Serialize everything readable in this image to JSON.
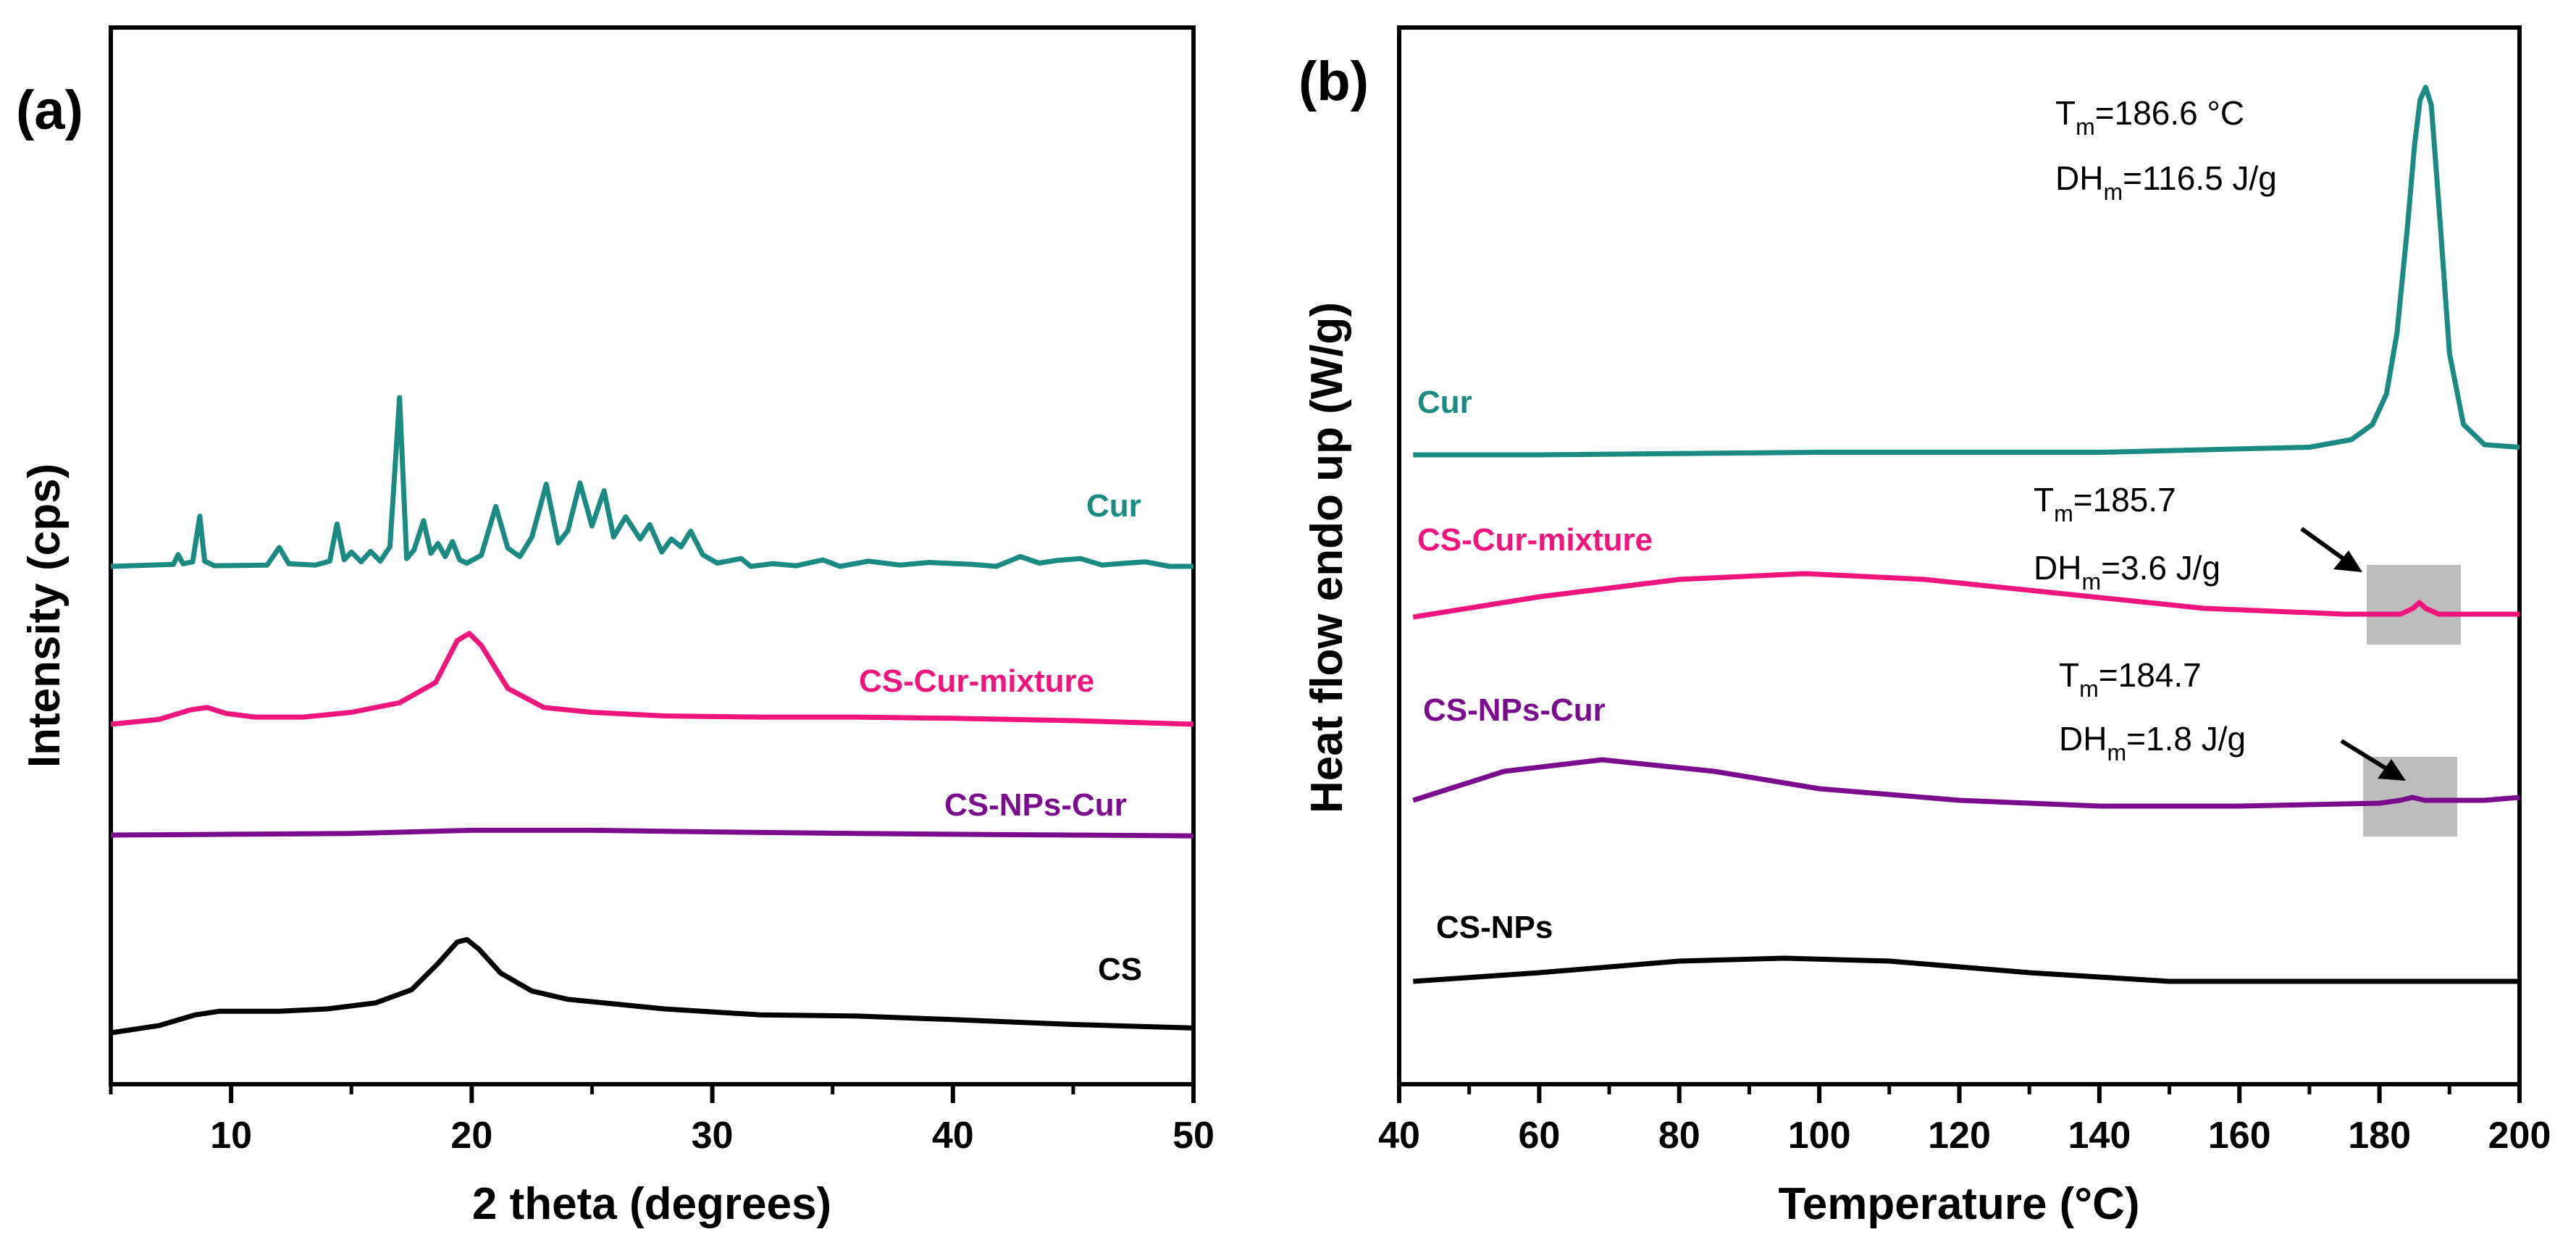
{
  "chart_data": [
    {
      "panel": "(a)",
      "type": "line",
      "xlabel": "2 theta (degrees)",
      "ylabel": "Intensity (cps)",
      "xlim": [
        5,
        50
      ],
      "xticks": [
        10,
        20,
        30,
        40,
        50
      ],
      "yticks": [],
      "series": [
        {
          "name": "Cur",
          "color": "#1a8a82",
          "x": [
            5,
            7.6,
            7.8,
            8.0,
            8.4,
            8.7,
            8.9,
            9.3,
            11.5,
            12.0,
            12.4,
            13.5,
            14.1,
            14.4,
            14.7,
            15.0,
            15.4,
            15.8,
            16.2,
            16.6,
            17.0,
            17.3,
            17.6,
            18.0,
            18.3,
            18.6,
            18.9,
            19.2,
            19.5,
            19.8,
            20.4,
            21.0,
            21.5,
            22.0,
            22.5,
            23.1,
            23.6,
            24.0,
            24.5,
            25.0,
            25.5,
            25.9,
            26.4,
            27.0,
            27.4,
            27.9,
            28.3,
            28.7,
            29.1,
            29.6,
            30.2,
            31.2,
            31.6,
            32.5,
            33.5,
            34.6,
            35.3,
            36.5,
            37.8,
            39.0,
            40.8,
            41.8,
            42.8,
            43.6,
            44.3,
            45.3,
            46.2,
            47.2,
            48.0,
            49.0,
            50
          ],
          "values": [
            0.0,
            0.03,
            0.18,
            0.04,
            0.07,
            0.77,
            0.08,
            0.01,
            0.02,
            0.29,
            0.04,
            0.02,
            0.08,
            0.65,
            0.1,
            0.22,
            0.07,
            0.23,
            0.08,
            0.3,
            2.59,
            0.12,
            0.25,
            0.7,
            0.2,
            0.35,
            0.15,
            0.38,
            0.1,
            0.05,
            0.17,
            0.92,
            0.28,
            0.15,
            0.45,
            1.26,
            0.36,
            0.55,
            1.28,
            0.62,
            1.16,
            0.45,
            0.76,
            0.42,
            0.64,
            0.22,
            0.42,
            0.3,
            0.54,
            0.18,
            0.05,
            0.12,
            0.0,
            0.04,
            0.01,
            0.1,
            0.0,
            0.08,
            0.02,
            0.06,
            0.03,
            0.0,
            0.15,
            0.05,
            0.09,
            0.12,
            0.02,
            0.05,
            0.07,
            0.0,
            0.0
          ]
        },
        {
          "name": "CS-Cur-mixture",
          "color": "#f0157d",
          "x": [
            5,
            7,
            8.3,
            9.0,
            9.8,
            11,
            13,
            15,
            17,
            18.5,
            19.4,
            19.9,
            20.4,
            21.5,
            23,
            25,
            28,
            32,
            36,
            40,
            45,
            50
          ],
          "values": [
            0.0,
            0.04,
            0.12,
            0.14,
            0.09,
            0.06,
            0.06,
            0.1,
            0.18,
            0.35,
            0.7,
            0.76,
            0.66,
            0.3,
            0.14,
            0.1,
            0.07,
            0.06,
            0.06,
            0.05,
            0.03,
            0.0
          ]
        },
        {
          "name": "CS-NPs-Cur",
          "color": "#7b0c8e",
          "x": [
            5,
            10,
            15,
            20,
            25,
            30,
            36,
            40,
            45,
            50
          ],
          "values": [
            0.0,
            0.01,
            0.02,
            0.06,
            0.06,
            0.04,
            0.02,
            0.01,
            0.0,
            -0.01
          ]
        },
        {
          "name": "CS",
          "color": "#000000",
          "x": [
            5,
            7,
            8.5,
            9.5,
            10.5,
            12,
            14,
            16,
            17.5,
            18.6,
            19.4,
            19.8,
            20.3,
            21.2,
            22.5,
            24,
            26,
            28,
            32,
            36,
            40,
            45,
            50
          ],
          "values": [
            0.0,
            0.06,
            0.15,
            0.18,
            0.18,
            0.18,
            0.2,
            0.25,
            0.36,
            0.58,
            0.76,
            0.78,
            0.7,
            0.5,
            0.35,
            0.28,
            0.24,
            0.2,
            0.15,
            0.14,
            0.11,
            0.07,
            0.04
          ]
        }
      ]
    },
    {
      "panel": "(b)",
      "type": "line",
      "xlabel": "Temperature (°C)",
      "ylabel": "Heat flow endo up (W/g)",
      "xlim": [
        40,
        200
      ],
      "xticks": [
        40,
        60,
        80,
        100,
        120,
        140,
        160,
        180,
        200
      ],
      "yticks": [],
      "series": [
        {
          "name": "Cur",
          "color": "#1a8a82",
          "x": [
            42,
            60,
            100,
            140,
            170,
            176,
            179,
            181,
            182.5,
            184,
            185,
            185.8,
            186.6,
            187.4,
            188.5,
            190,
            192,
            195,
            200
          ],
          "values": [
            0.0,
            0.0,
            0.01,
            0.01,
            0.03,
            0.06,
            0.12,
            0.24,
            0.48,
            0.9,
            1.22,
            1.4,
            1.45,
            1.38,
            0.98,
            0.4,
            0.12,
            0.04,
            0.03
          ]
        },
        {
          "name": "CS-Cur-mixture",
          "color": "#f0157d",
          "x": [
            42,
            60,
            80,
            98,
            115,
            135,
            155,
            175,
            183,
            184.8,
            185.7,
            186.6,
            188.5,
            195,
            200
          ],
          "values": [
            0.0,
            0.07,
            0.13,
            0.15,
            0.13,
            0.08,
            0.03,
            0.01,
            0.01,
            0.03,
            0.05,
            0.03,
            0.01,
            0.01,
            0.01
          ]
        },
        {
          "name": "CS-NPs-Cur",
          "color": "#7b0c8e",
          "x": [
            42,
            55,
            69,
            85,
            100,
            120,
            140,
            160,
            180,
            183,
            184.7,
            186.5,
            195,
            200
          ],
          "values": [
            0.0,
            0.1,
            0.14,
            0.1,
            0.04,
            0.0,
            -0.02,
            -0.02,
            -0.01,
            0.0,
            0.01,
            0.0,
            0.0,
            0.01
          ]
        },
        {
          "name": "CS-NPs",
          "color": "#000000",
          "x": [
            42,
            60,
            80,
            95,
            110,
            130,
            150,
            170,
            200
          ],
          "values": [
            0.0,
            0.03,
            0.07,
            0.08,
            0.07,
            0.03,
            0.0,
            0.0,
            0.0
          ]
        }
      ],
      "annotations": [
        {
          "tm": "186.6 °C",
          "dh": "116.5 J/g"
        },
        {
          "tm": "185.7",
          "dh": "3.6 J/g"
        },
        {
          "tm": "184.7",
          "dh": "1.8 J/g"
        }
      ],
      "highlight_boxes": [
        {
          "series": "CS-Cur-mixture",
          "x_range": [
            178,
            192
          ]
        },
        {
          "series": "CS-NPs-Cur",
          "x_range": [
            178,
            192
          ]
        }
      ]
    }
  ]
}
